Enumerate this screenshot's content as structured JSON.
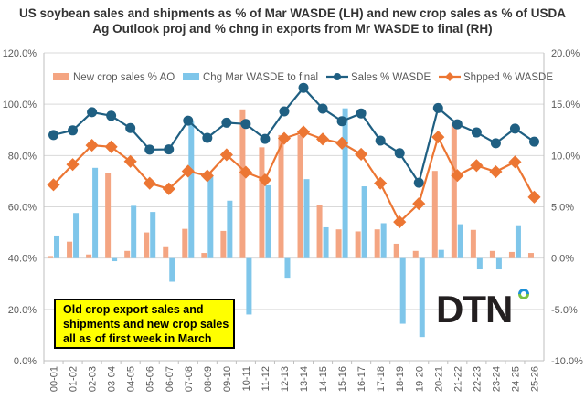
{
  "chart_data": {
    "type": "bar",
    "title": "US soybean sales  and shipments  as % of Mar WASDE (LH) and new crop sales as % of USDA Ag Outlook proj and % chng in exports from Mr WASDE to final (RH)",
    "categories": [
      "00-01",
      "01-02",
      "02-03",
      "03-04",
      "04-05",
      "05-06",
      "06-07",
      "07-08",
      "08-09",
      "09-10",
      "10-11",
      "11-12",
      "12-13",
      "13-14",
      "14-15",
      "15-16",
      "16-17",
      "17-18",
      "18-19",
      "19-20",
      "20-21",
      "21-22",
      "22-23",
      "23-24",
      "24-25",
      "25-26"
    ],
    "left_axis": {
      "range": [
        0,
        120
      ],
      "ticks": [
        "0.0%",
        "20.0%",
        "40.0%",
        "60.0%",
        "80.0%",
        "100.0%",
        "120.0%"
      ],
      "unit": "%"
    },
    "right_axis": {
      "range": [
        -10,
        20
      ],
      "ticks": [
        "-10.0%",
        "-5.0%",
        "0.0%",
        "5.0%",
        "10.0%",
        "15.0%",
        "20.0%"
      ],
      "unit": "%"
    },
    "grid": true,
    "legend_placement": "top",
    "series": [
      {
        "name": "New crop sales % AO",
        "type": "bar",
        "axis": "right",
        "color": "#f4a582",
        "values": [
          0.2,
          1.6,
          0.35,
          8.3,
          0.7,
          2.5,
          1.15,
          2.85,
          0.5,
          2.65,
          14.5,
          10.8,
          12.0,
          12.0,
          5.2,
          2.8,
          2.6,
          2.8,
          1.4,
          0.7,
          8.5,
          13.1,
          2.75,
          0.7,
          0.6,
          0.5
        ]
      },
      {
        "name": "Chg Mar WASDE to final",
        "type": "bar",
        "axis": "right",
        "color": "#7fc6ea",
        "values": [
          2.2,
          4.4,
          8.8,
          -0.3,
          5.1,
          4.5,
          -2.3,
          13.3,
          8.0,
          5.6,
          -5.5,
          7.1,
          -2.0,
          7.7,
          3.0,
          14.6,
          7.0,
          3.4,
          -6.4,
          -7.7,
          0.8,
          3.3,
          -1.1,
          -1.1,
          3.2,
          null
        ]
      },
      {
        "name": "Sales % WASDE",
        "type": "line",
        "marker": "circle",
        "axis": "left",
        "color": "#1f5f82",
        "values": [
          88.0,
          89.8,
          96.9,
          95.5,
          90.7,
          82.3,
          82.4,
          93.6,
          86.9,
          92.8,
          92.3,
          86.5,
          97.2,
          106.4,
          98.3,
          93.4,
          96.4,
          85.8,
          80.9,
          69.4,
          98.5,
          92.2,
          89.0,
          84.8,
          90.5,
          85.4
        ]
      },
      {
        "name": "Shpped % WASDE",
        "type": "line",
        "marker": "diamond",
        "axis": "left",
        "color": "#ec7633",
        "values": [
          68.6,
          76.5,
          84.0,
          83.4,
          77.7,
          69.2,
          67.0,
          73.9,
          72.1,
          80.3,
          73.5,
          70.5,
          86.7,
          89.2,
          86.4,
          84.8,
          80.5,
          69.2,
          54.1,
          61.2,
          87.2,
          72.2,
          76.1,
          73.7,
          77.5,
          63.8
        ]
      }
    ],
    "annotation": "Old crop export sales and shipments and new crop sales all as of first week in March"
  },
  "logo": {
    "text": "DTN",
    "colors": [
      "#1e90d6",
      "#7ac143"
    ]
  }
}
